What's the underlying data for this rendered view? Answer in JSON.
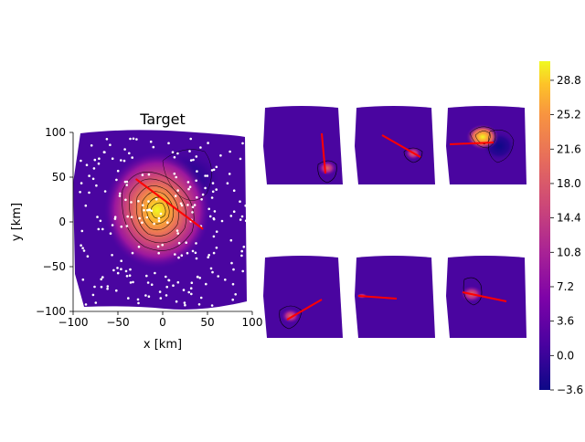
{
  "chart_data": {
    "type": "heatmap",
    "main": {
      "title": "Target",
      "xlabel": "x [km]",
      "ylabel": "y [km]",
      "xlim": [
        -100,
        100
      ],
      "ylim": [
        -100,
        100
      ],
      "xticks": [
        "−100",
        "−50",
        "0",
        "50",
        "100"
      ],
      "yticks": [
        "100",
        "50",
        "0",
        "−50",
        "−100"
      ],
      "tick_values": [
        -100,
        -50,
        0,
        50,
        100
      ],
      "peak": {
        "x": -5,
        "y": 8,
        "value": 30
      },
      "trough": {
        "x": 25,
        "y": 45,
        "value": -3.6
      },
      "fault_line": {
        "x1": -30,
        "y1": 48,
        "x2": 45,
        "y2": -8,
        "color": "#ff0000"
      }
    },
    "colorbar": {
      "colormap": "plasma",
      "range": [
        -3.6,
        30.8
      ],
      "ticks": [
        "28.8",
        "25.2",
        "21.6",
        "18.0",
        "14.4",
        "10.8",
        "7.2",
        "3.6",
        "0.0",
        "−3.6"
      ]
    },
    "colors": {
      "background_field": "#4a05a0",
      "fault_line": "#ff0000",
      "station": "#ffffff"
    }
  }
}
